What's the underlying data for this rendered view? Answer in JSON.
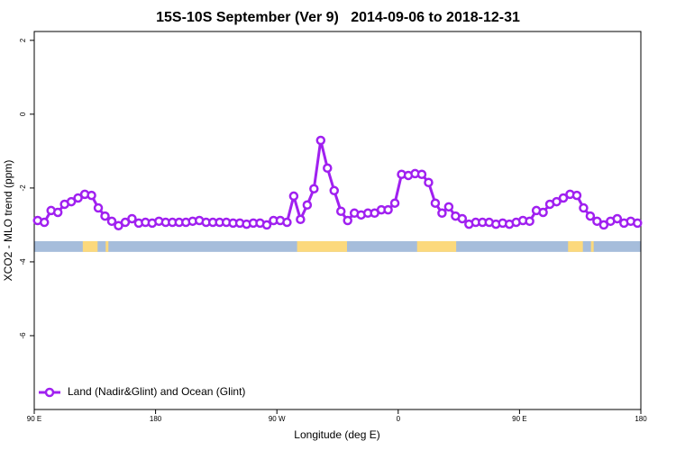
{
  "chart_data": {
    "type": "line",
    "title": "15S-10S September (Ver 9)   2014-09-06 to 2018-12-31",
    "x_label": "Longitude (deg E)",
    "y_label": "XCO2 - MLO trend (ppm)",
    "x": [
      92.5,
      97.5,
      102.5,
      107.5,
      112.5,
      117.5,
      122.5,
      127.5,
      132.5,
      137.5,
      142.5,
      147.5,
      152.5,
      157.5,
      162.5,
      167.5,
      172.5,
      177.5,
      182.5,
      187.5,
      192.5,
      197.5,
      202.5,
      207.5,
      212.5,
      217.5,
      222.5,
      227.5,
      232.5,
      237.5,
      242.5,
      247.5,
      252.5,
      257.5,
      262.5,
      267.5,
      272.5,
      277.5,
      282.5,
      287.5,
      292.5,
      297.5,
      302.5,
      307.5,
      312.5,
      317.5,
      322.5,
      327.5,
      332.5,
      337.5,
      342.5,
      347.5,
      352.5,
      357.5,
      362.5,
      367.5,
      372.5,
      377.5,
      382.5,
      387.5,
      392.5,
      397.5,
      402.5,
      407.5,
      412.5,
      417.5,
      422.5,
      427.5,
      432.5,
      437.5,
      442.5,
      447.5,
      452.5,
      457.5,
      462.5,
      467.5,
      472.5,
      477.5,
      482.5,
      487.5,
      492.5,
      497.5,
      502.5,
      507.5,
      512.5,
      517.5,
      522.5,
      527.5,
      532.5,
      537.5
    ],
    "series": [
      {
        "name": "Land (Nadir&Glint) and Ocean (Glint)",
        "color": "#a020f0",
        "values": [
          -2.88,
          -2.93,
          -2.61,
          -2.66,
          -2.44,
          -2.37,
          -2.27,
          -2.17,
          -2.2,
          -2.54,
          -2.76,
          -2.9,
          -3.02,
          -2.93,
          -2.83,
          -2.95,
          -2.93,
          -2.95,
          -2.9,
          -2.93,
          -2.93,
          -2.93,
          -2.93,
          -2.9,
          -2.88,
          -2.93,
          -2.93,
          -2.93,
          -2.93,
          -2.95,
          -2.95,
          -2.98,
          -2.95,
          -2.95,
          -3.0,
          -2.88,
          -2.88,
          -2.93,
          -2.22,
          -2.85,
          -2.46,
          -2.02,
          -0.71,
          -1.46,
          -2.07,
          -2.63,
          -2.88,
          -2.68,
          -2.73,
          -2.68,
          -2.68,
          -2.59,
          -2.59,
          -2.41,
          -1.63,
          -1.66,
          -1.61,
          -1.63,
          -1.85,
          -2.41,
          -2.68,
          -2.51,
          -2.76,
          -2.83,
          -2.98,
          -2.93,
          -2.93,
          -2.93,
          -2.98,
          -2.95,
          -2.98,
          -2.93,
          -2.88,
          -2.9,
          -2.61,
          -2.66,
          -2.44,
          -2.37,
          -2.27,
          -2.17,
          -2.2,
          -2.54,
          -2.76,
          -2.9,
          -3.0,
          -2.9,
          -2.83,
          -2.95,
          -2.9,
          -2.95
        ]
      }
    ],
    "xlim": [
      90,
      540
    ],
    "xticks": [
      {
        "value": 90,
        "label": "90 E"
      },
      180,
      {
        "value": 270,
        "label": "90 W"
      },
      {
        "value": 360,
        "label": "0"
      },
      {
        "value": 450,
        "label": "90 E"
      },
      {
        "value": 540,
        "label": "180"
      }
    ],
    "ylim": [
      -8,
      2.24
    ],
    "yticks": [
      2,
      0,
      -2,
      -4,
      -6
    ],
    "legend": "bottom-left",
    "surface_band": {
      "ylim": [
        -3.73,
        -3.44
      ],
      "ocean_color": "#a6bddb",
      "land_color": "#fcd97c",
      "land": [
        [
          126,
          137
        ],
        [
          143,
          145
        ],
        [
          285,
          322
        ],
        [
          374,
          403
        ],
        [
          486,
          497
        ],
        [
          503,
          505
        ]
      ]
    }
  }
}
